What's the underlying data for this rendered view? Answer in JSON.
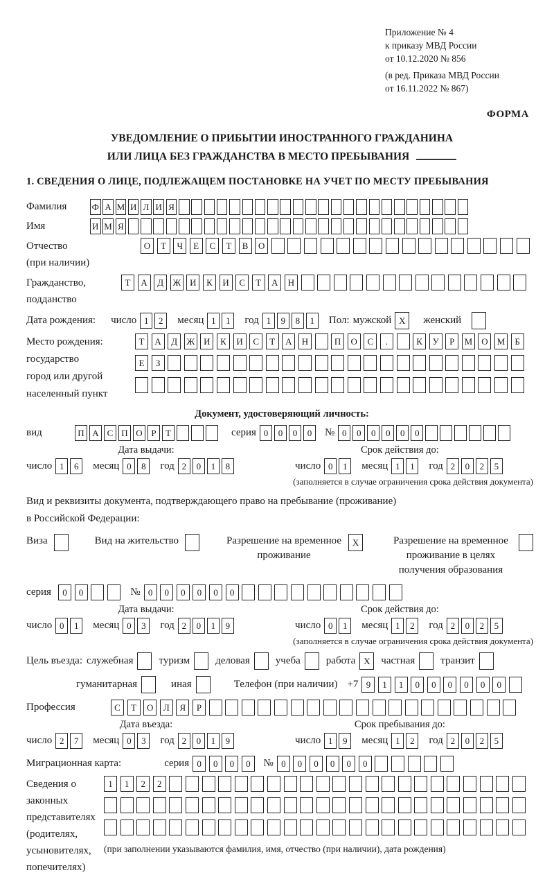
{
  "header": {
    "appendix_lines": [
      "Приложение № 4",
      "к приказу МВД России",
      "от 10.12.2020 № 856"
    ],
    "edition_lines": [
      "(в ред. Приказа МВД России",
      "от 16.11.2022 № 867)"
    ],
    "forma": "ФОРМА"
  },
  "title": {
    "line1": "УВЕДОМЛЕНИЕ О ПРИБЫТИИ ИНОСТРАННОГО ГРАЖДАНИНА",
    "line2": "ИЛИ ЛИЦА БЕЗ ГРАЖДАНСТВА В МЕСТО ПРЕБЫВАНИЯ"
  },
  "section1_heading": "1. СВЕДЕНИЯ О ЛИЦЕ, ПОДЛЕЖАЩЕМ ПОСТАНОВКЕ НА УЧЕТ ПО МЕСТУ ПРЕБЫВАНИЯ",
  "labels": {
    "day": "число",
    "month": "месяц",
    "year": "год",
    "issue_date": "Дата выдачи:",
    "valid_until": "Срок действия до:",
    "series": "серия",
    "number": "№",
    "validity_note": "(заполняется в случае ограничения срока действия документа)"
  },
  "person": {
    "surname_label": "Фамилия",
    "surname": {
      "t": "ФАМИЛИЯ",
      "n": 30
    },
    "name_label": "Имя",
    "name": {
      "t": "ИМЯ",
      "n": 30
    },
    "patronymic_label1": "Отчество",
    "patronymic_label2": "(при наличии)",
    "patronymic": {
      "t": "ОТЧЕСТВО",
      "n": 24
    },
    "citizenship_label1": "Гражданство,",
    "citizenship_label2": "подданство",
    "citizenship": {
      "t": "ТАДЖИКИСТАН",
      "n": 25
    },
    "birthdate_label": "Дата рождения:",
    "birth_day": {
      "t": "12",
      "n": 2
    },
    "birth_month": {
      "t": "11",
      "n": 2
    },
    "birth_year": {
      "t": "1981",
      "n": 4
    },
    "sex_label": "Пол:",
    "male_label": "мужской",
    "male": {
      "t": "X",
      "n": 1
    },
    "female_label": "женский",
    "female": {
      "t": "",
      "n": 1
    },
    "birthplace_label1": "Место рождения:",
    "birthplace_label2": "государство",
    "birthplace_label3": "город или другой",
    "birthplace_label4": "населенный пункт",
    "birthplace_row1": {
      "t": "ТАДЖИКИСТАН ПОС. КУРМОМБ",
      "n": 24
    },
    "birthplace_row2": {
      "t": "ЕЗ",
      "n": 24
    },
    "birthplace_row3": {
      "t": "",
      "n": 24
    }
  },
  "identity_doc": {
    "heading": "Документ, удостоверяющий личность:",
    "kind_label": "вид",
    "kind": {
      "t": "ПАСПОРТ",
      "n": 10
    },
    "series": {
      "t": "0000",
      "n": 4
    },
    "number": {
      "t": "000000",
      "n": 12
    },
    "issue_day": {
      "t": "16",
      "n": 2
    },
    "issue_month": {
      "t": "08",
      "n": 2
    },
    "issue_year": {
      "t": "2018",
      "n": 4
    },
    "valid_day": {
      "t": "01",
      "n": 2
    },
    "valid_month": {
      "t": "11",
      "n": 2
    },
    "valid_year": {
      "t": "2025",
      "n": 4
    }
  },
  "residence_doc": {
    "intro1": "Вид и реквизиты документа, подтверждающего право на пребывание (проживание)",
    "intro2": "в Российской Федерации:",
    "options": [
      {
        "label": "Виза",
        "box": {
          "t": "",
          "n": 1
        }
      },
      {
        "label": "Вид на жительство",
        "box": {
          "t": "",
          "n": 1
        }
      },
      {
        "label": "Разрешение на временное проживание",
        "box": {
          "t": "X",
          "n": 1
        }
      },
      {
        "label": "Разрешение на временное проживание в целях получения образования",
        "box": {
          "t": "",
          "n": 1
        }
      }
    ],
    "series": {
      "t": "00",
      "n": 4
    },
    "number": {
      "t": "000000",
      "n": 16
    },
    "issue_day": {
      "t": "01",
      "n": 2
    },
    "issue_month": {
      "t": "03",
      "n": 2
    },
    "issue_year": {
      "t": "2019",
      "n": 4
    },
    "valid_day": {
      "t": "01",
      "n": 2
    },
    "valid_month": {
      "t": "12",
      "n": 2
    },
    "valid_year": {
      "t": "2025",
      "n": 4
    }
  },
  "entry": {
    "purpose_label": "Цель въезда:",
    "purposes_row1": [
      {
        "label": "служебная",
        "box": {
          "t": "",
          "n": 1
        }
      },
      {
        "label": "туризм",
        "box": {
          "t": "",
          "n": 1
        }
      },
      {
        "label": "деловая",
        "box": {
          "t": "",
          "n": 1
        }
      },
      {
        "label": "учеба",
        "box": {
          "t": "",
          "n": 1
        }
      },
      {
        "label": "работа",
        "box": {
          "t": "X",
          "n": 1
        }
      },
      {
        "label": "частная",
        "box": {
          "t": "",
          "n": 1
        }
      },
      {
        "label": "транзит",
        "box": {
          "t": "",
          "n": 1
        }
      }
    ],
    "purposes_row2": [
      {
        "label": "гуманитарная",
        "box": {
          "t": "",
          "n": 1
        }
      },
      {
        "label": "иная",
        "box": {
          "t": "",
          "n": 1
        }
      }
    ],
    "phone_label": "Телефон (при наличии)",
    "phone_prefix": "+7",
    "phone": {
      "t": "911000000",
      "n": 10
    },
    "profession_label": "Профессия",
    "profession": {
      "t": "СТОЛЯР",
      "n": 25
    },
    "entry_date_label": "Дата въезда:",
    "entry_day": {
      "t": "27",
      "n": 2
    },
    "entry_month": {
      "t": "03",
      "n": 2
    },
    "entry_year": {
      "t": "2019",
      "n": 4
    },
    "stay_label": "Срок пребывания до:",
    "stay_day": {
      "t": "19",
      "n": 2
    },
    "stay_month": {
      "t": "12",
      "n": 2
    },
    "stay_year": {
      "t": "2025",
      "n": 4
    }
  },
  "migration_card": {
    "label": "Миграционная карта:",
    "series": {
      "t": "0000",
      "n": 4
    },
    "number": {
      "t": "000000",
      "n": 11
    }
  },
  "representatives": {
    "label_lines": [
      "Сведения о",
      "законных",
      "представителях",
      "(родителях,",
      "усыновителях,",
      "попечителях)"
    ],
    "rows": [
      {
        "t": "1122",
        "n": 26
      },
      {
        "t": "",
        "n": 26
      },
      {
        "t": "",
        "n": 26
      }
    ],
    "note": "(при заполнении указываются фамилия, имя, отчество (при наличии), дата рождения)"
  }
}
